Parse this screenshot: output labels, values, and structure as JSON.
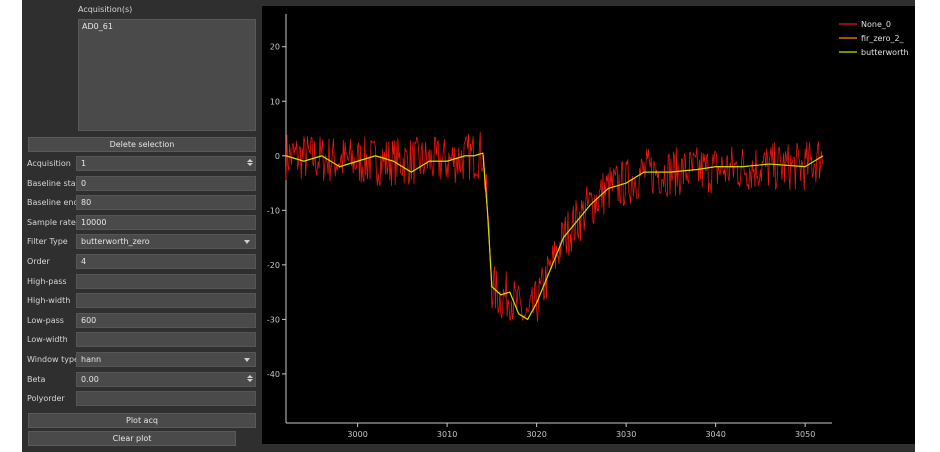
{
  "acq_list": {
    "label": "Acquisition(s)",
    "items": [
      "AD0_61"
    ]
  },
  "buttons": {
    "delete_selection": "Delete selection",
    "plot_acq": "Plot acq",
    "clear_plot": "Clear plot"
  },
  "form": [
    {
      "label": "Acquisition",
      "value": "1",
      "kind": "spin"
    },
    {
      "label": "Baseline start",
      "value": "0",
      "kind": "text"
    },
    {
      "label": "Baseline end",
      "value": "80",
      "kind": "text"
    },
    {
      "label": "Sample rate",
      "value": "10000",
      "kind": "text"
    },
    {
      "label": "Filter Type",
      "value": "butterworth_zero",
      "kind": "select"
    },
    {
      "label": "Order",
      "value": "4",
      "kind": "text"
    },
    {
      "label": "High-pass",
      "value": "",
      "kind": "text"
    },
    {
      "label": "High-width",
      "value": "",
      "kind": "text"
    },
    {
      "label": "Low-pass",
      "value": "600",
      "kind": "text"
    },
    {
      "label": "Low-width",
      "value": "",
      "kind": "text"
    },
    {
      "label": "Window type",
      "value": "hann",
      "kind": "select"
    },
    {
      "label": "Beta",
      "value": "0.00",
      "kind": "spin"
    },
    {
      "label": "Polyorder",
      "value": "",
      "kind": "text"
    }
  ],
  "colors": {
    "series_raw": "#e8170f",
    "series_fir": "#ff8c00",
    "series_butter": "#c8e000",
    "plot_bg": "#000000",
    "axis": "#c8c8c8"
  },
  "chart_data": {
    "type": "line",
    "title": "",
    "xlabel": "",
    "ylabel": "",
    "xlim": [
      2992,
      3053
    ],
    "ylim": [
      -49,
      26
    ],
    "xticks": [
      3000,
      3010,
      3020,
      3030,
      3040,
      3050
    ],
    "yticks": [
      20,
      10,
      0,
      -10,
      -20,
      -30,
      -40
    ],
    "legend_position": "top-right",
    "series": [
      {
        "name": "None_0",
        "color": "#e8170f",
        "noisy": true,
        "x": [
          2992,
          3000,
          3005,
          3010,
          3013,
          3014,
          3014.5,
          3015,
          3016,
          3017,
          3018,
          3019,
          3020,
          3021,
          3022,
          3023,
          3024,
          3025,
          3026,
          3028,
          3030,
          3032,
          3035,
          3040,
          3045,
          3050,
          3052
        ],
        "y": [
          0,
          -1,
          -1,
          -1,
          0,
          0.5,
          -10,
          -24,
          -26,
          -25.5,
          -28,
          -30,
          -27,
          -23,
          -19,
          -15,
          -13,
          -11,
          -9,
          -6,
          -5,
          -3,
          -3,
          -2.5,
          -2,
          -2,
          0
        ]
      },
      {
        "name": "fir_zero_2_",
        "color": "#ff8c00",
        "noisy": false,
        "x": [
          2992,
          2994,
          2996,
          2998,
          3000,
          3002,
          3004,
          3006,
          3008,
          3010,
          3012,
          3013,
          3014,
          3014.5,
          3015,
          3016,
          3017,
          3018,
          3019,
          3020,
          3021,
          3022,
          3023,
          3024,
          3025,
          3026,
          3028,
          3030,
          3032,
          3035,
          3038,
          3040,
          3043,
          3046,
          3050,
          3052
        ],
        "y": [
          0,
          -1,
          0,
          -2,
          -1,
          0,
          -1,
          -3,
          -1,
          -1,
          0,
          0,
          0.5,
          -10,
          -24,
          -25.5,
          -25,
          -29,
          -30,
          -27,
          -23,
          -19,
          -15,
          -13,
          -11,
          -9,
          -6,
          -5,
          -3,
          -3,
          -2.5,
          -2,
          -2,
          -1.5,
          -2,
          0
        ]
      },
      {
        "name": "butterworth",
        "color": "#c8e000",
        "noisy": false,
        "x": [
          2992,
          2994,
          2996,
          2998,
          3000,
          3002,
          3004,
          3006,
          3008,
          3010,
          3012,
          3013,
          3014,
          3014.5,
          3015,
          3016,
          3017,
          3018,
          3019,
          3020,
          3021,
          3022,
          3023,
          3024,
          3025,
          3026,
          3028,
          3030,
          3032,
          3035,
          3038,
          3040,
          3043,
          3046,
          3050,
          3052
        ],
        "y": [
          0,
          -1,
          0,
          -2,
          -1,
          0,
          -1,
          -3,
          -1,
          -1,
          0,
          0,
          0.5,
          -10,
          -24,
          -25.5,
          -25,
          -29,
          -30,
          -27,
          -23,
          -19,
          -15,
          -13,
          -11,
          -9,
          -6,
          -5,
          -3,
          -3,
          -2.5,
          -2,
          -2,
          -1.5,
          -2,
          0
        ]
      }
    ]
  }
}
